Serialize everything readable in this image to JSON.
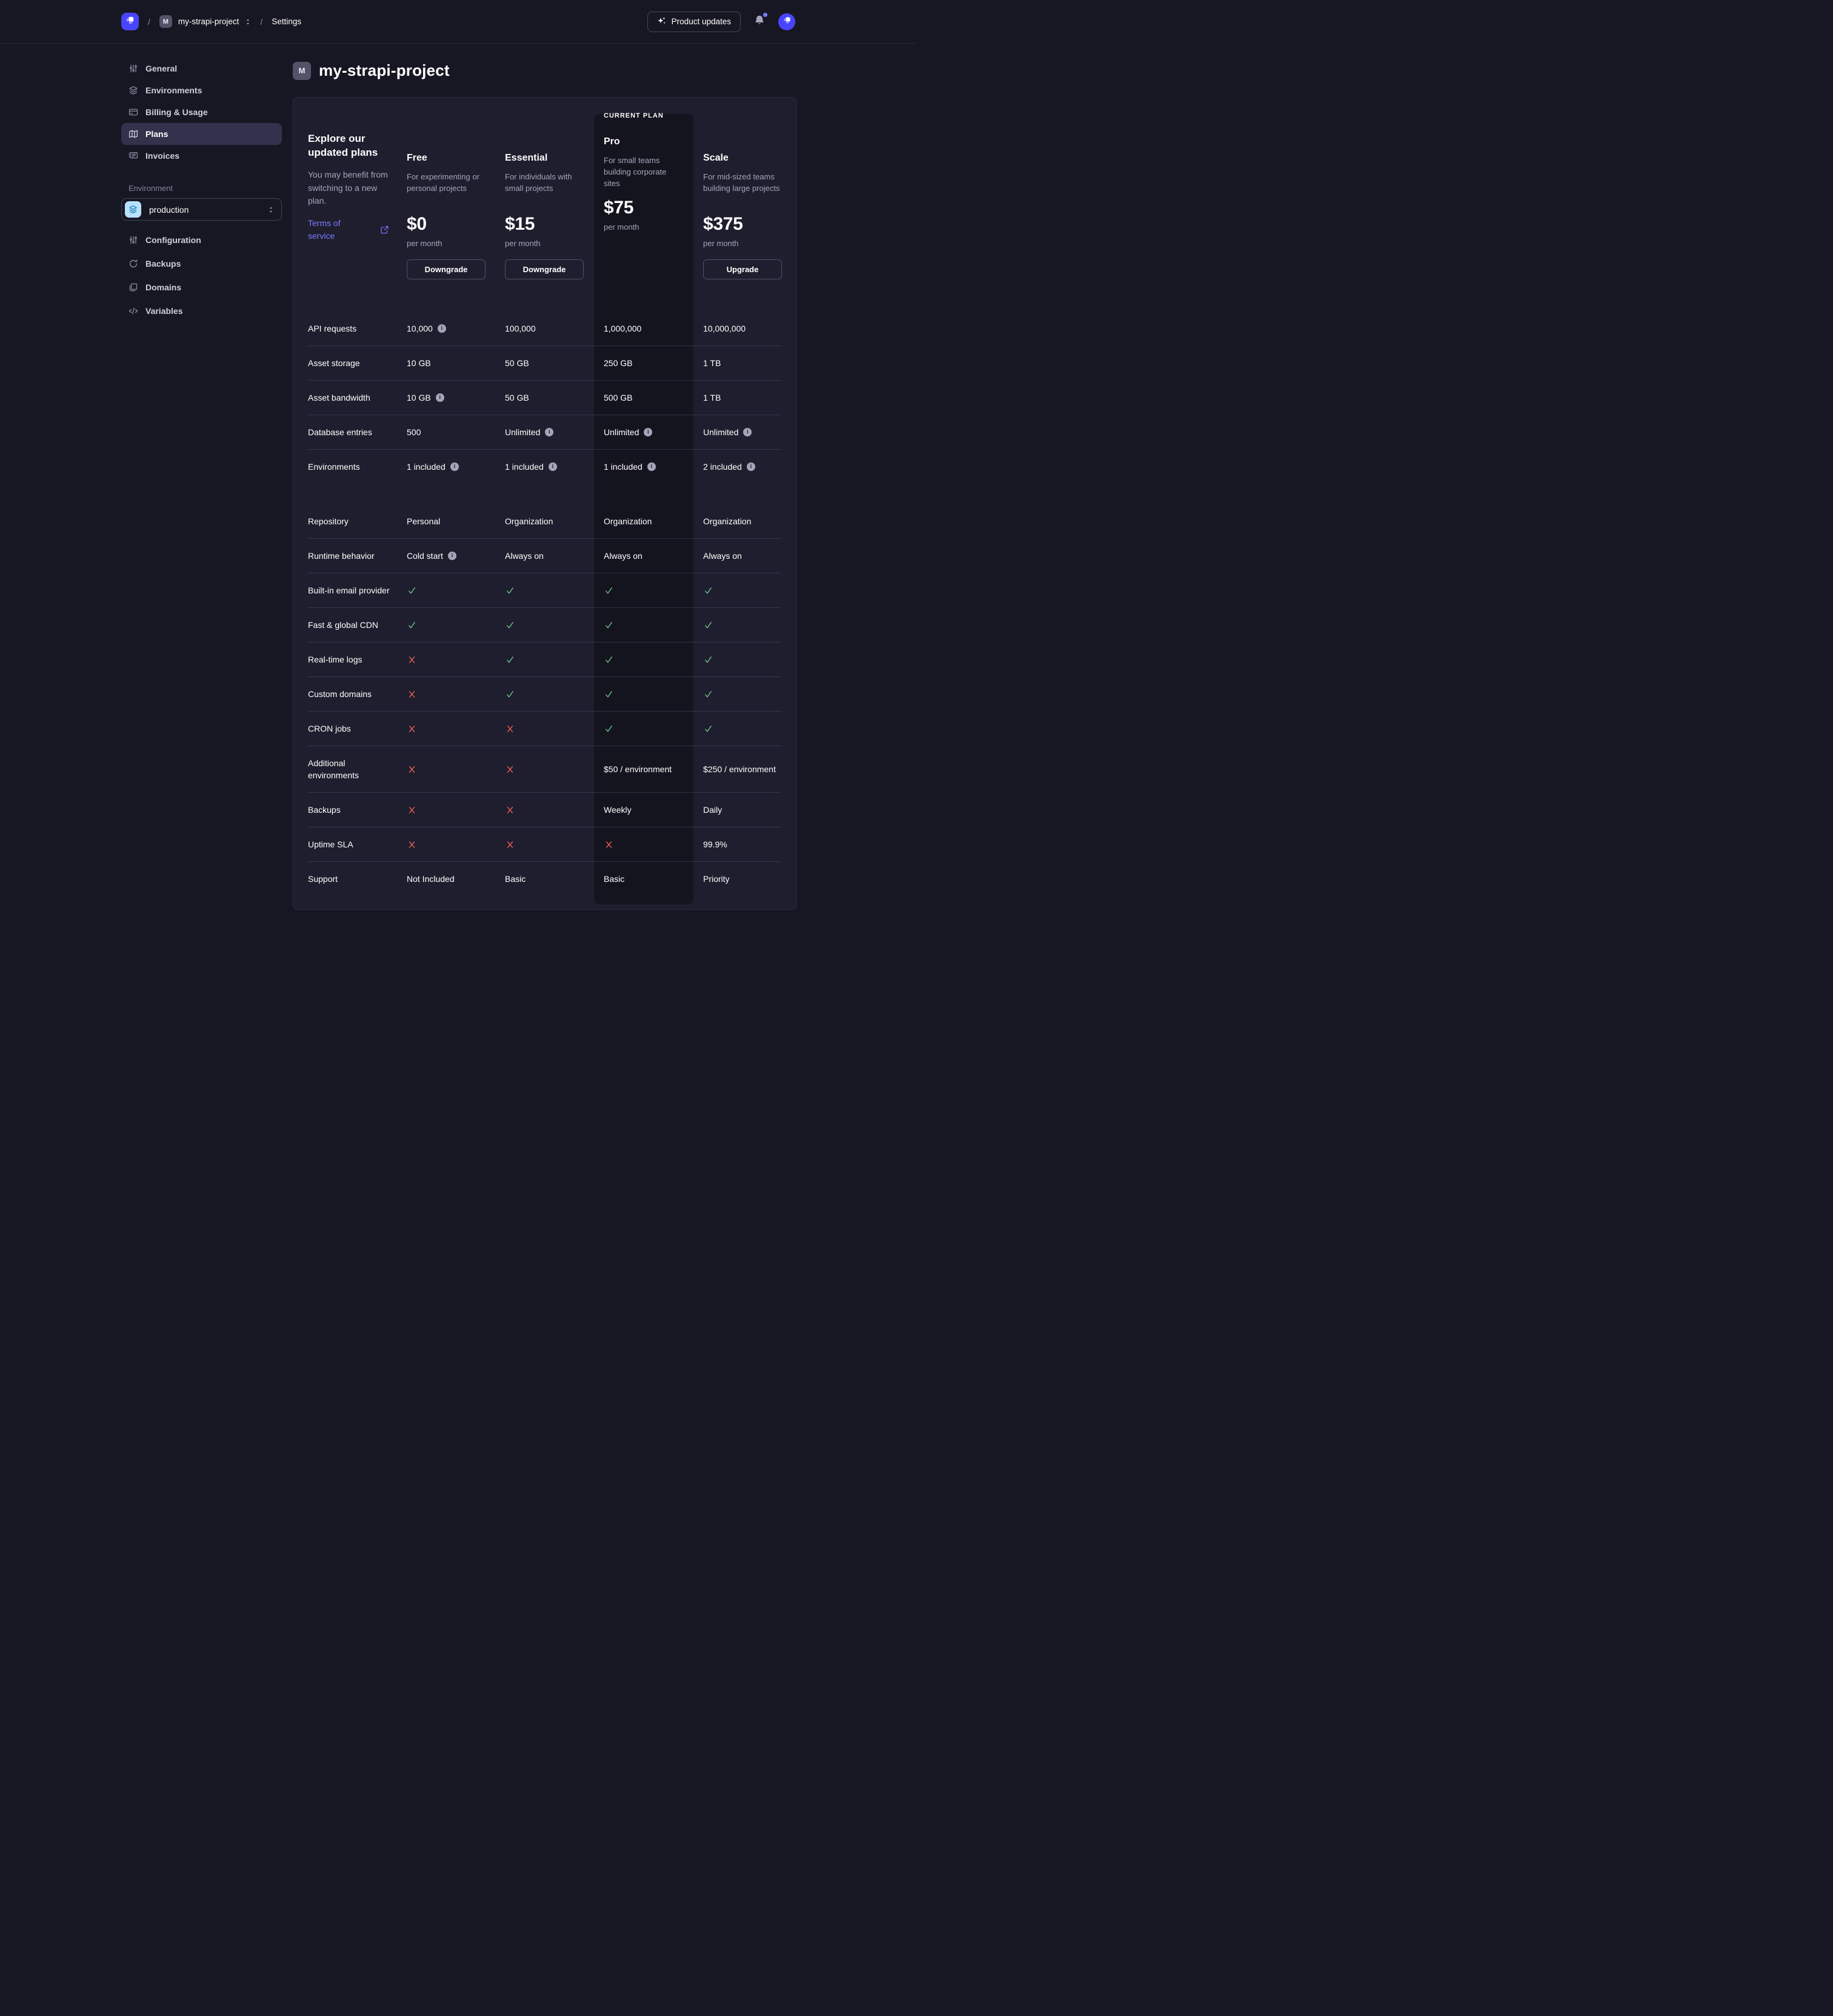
{
  "colors": {
    "brand": "#4945ff",
    "link": "#7b79ff",
    "success": "#69c387",
    "danger": "#ee5e52",
    "environment_icon_bg": "#b8e1ff",
    "current_plan_bg": "#14141f"
  },
  "topbar": {
    "project_initial": "M",
    "project_name": "my-strapi-project",
    "section": "Settings",
    "separator": "/",
    "product_updates_label": "Product updates"
  },
  "sidebar": {
    "items": [
      {
        "label": "General",
        "icon": "sliders-icon",
        "active": false
      },
      {
        "label": "Environments",
        "icon": "layers-icon",
        "active": false
      },
      {
        "label": "Billing & Usage",
        "icon": "credit-card-icon",
        "active": false
      },
      {
        "label": "Plans",
        "icon": "map-icon",
        "active": true
      },
      {
        "label": "Invoices",
        "icon": "invoice-icon",
        "active": false
      }
    ],
    "environment_label": "Environment",
    "environment_value": "production",
    "environment_items": [
      {
        "label": "Configuration",
        "icon": "sliders-icon"
      },
      {
        "label": "Backups",
        "icon": "refresh-icon"
      },
      {
        "label": "Domains",
        "icon": "folders-icon"
      },
      {
        "label": "Variables",
        "icon": "code-icon"
      }
    ]
  },
  "main": {
    "project_initial": "M",
    "title": "my-strapi-project",
    "intro": {
      "heading": "Explore our updated plans",
      "body": "You may benefit from switching to a new plan.",
      "link_label": "Terms of service"
    },
    "current_plan_label": "CURRENT PLAN",
    "plans": [
      {
        "name": "Free",
        "description": "For experimenting or personal projects",
        "price": "$0",
        "period": "per month",
        "action": "Downgrade",
        "current": false
      },
      {
        "name": "Essential",
        "description": "For individuals with small projects",
        "price": "$15",
        "period": "per month",
        "action": "Downgrade",
        "current": false
      },
      {
        "name": "Pro",
        "description": "For small teams building corporate sites",
        "price": "$75",
        "period": "per month",
        "action": null,
        "current": true
      },
      {
        "name": "Scale",
        "description": "For mid-sized teams building large projects",
        "price": "$375",
        "period": "per month",
        "action": "Upgrade",
        "current": false
      }
    ],
    "features": [
      {
        "label": "API requests",
        "cells": [
          {
            "type": "text",
            "value": "10,000",
            "info": true
          },
          {
            "type": "text",
            "value": "100,000"
          },
          {
            "type": "text",
            "value": "1,000,000"
          },
          {
            "type": "text",
            "value": "10,000,000"
          }
        ]
      },
      {
        "label": "Asset storage",
        "cells": [
          {
            "type": "text",
            "value": "10 GB"
          },
          {
            "type": "text",
            "value": "50 GB"
          },
          {
            "type": "text",
            "value": "250 GB"
          },
          {
            "type": "text",
            "value": "1 TB"
          }
        ]
      },
      {
        "label": "Asset bandwidth",
        "cells": [
          {
            "type": "text",
            "value": "10 GB",
            "info": true
          },
          {
            "type": "text",
            "value": "50 GB"
          },
          {
            "type": "text",
            "value": "500 GB"
          },
          {
            "type": "text",
            "value": "1 TB"
          }
        ]
      },
      {
        "label": "Database entries",
        "cells": [
          {
            "type": "text",
            "value": "500"
          },
          {
            "type": "text",
            "value": "Unlimited",
            "info": true
          },
          {
            "type": "text",
            "value": "Unlimited",
            "info": true
          },
          {
            "type": "text",
            "value": "Unlimited",
            "info": true
          }
        ]
      },
      {
        "label": "Environments",
        "variant": "tall",
        "cells": [
          {
            "type": "text",
            "value": "1 included",
            "info": true
          },
          {
            "type": "text",
            "value": "1 included",
            "info": true
          },
          {
            "type": "text",
            "value": "1 included",
            "info": true
          },
          {
            "type": "text",
            "value": "2 included",
            "info": true
          }
        ]
      },
      {
        "label": "Repository",
        "cells": [
          {
            "type": "text",
            "value": "Personal"
          },
          {
            "type": "text",
            "value": "Organization"
          },
          {
            "type": "text",
            "value": "Organization"
          },
          {
            "type": "text",
            "value": "Organization"
          }
        ]
      },
      {
        "label": "Runtime behavior",
        "cells": [
          {
            "type": "text",
            "value": "Cold start",
            "info": true
          },
          {
            "type": "text",
            "value": "Always on"
          },
          {
            "type": "text",
            "value": "Always on"
          },
          {
            "type": "text",
            "value": "Always on"
          }
        ]
      },
      {
        "label": "Built-in email provider",
        "cells": [
          {
            "type": "check"
          },
          {
            "type": "check"
          },
          {
            "type": "check"
          },
          {
            "type": "check"
          }
        ]
      },
      {
        "label": "Fast & global CDN",
        "cells": [
          {
            "type": "check"
          },
          {
            "type": "check"
          },
          {
            "type": "check"
          },
          {
            "type": "check"
          }
        ]
      },
      {
        "label": "Real-time logs",
        "cells": [
          {
            "type": "cross"
          },
          {
            "type": "check"
          },
          {
            "type": "check"
          },
          {
            "type": "check"
          }
        ]
      },
      {
        "label": "Custom domains",
        "cells": [
          {
            "type": "cross"
          },
          {
            "type": "check"
          },
          {
            "type": "check"
          },
          {
            "type": "check"
          }
        ]
      },
      {
        "label": "CRON jobs",
        "cells": [
          {
            "type": "cross"
          },
          {
            "type": "cross"
          },
          {
            "type": "check"
          },
          {
            "type": "check"
          }
        ]
      },
      {
        "label": "Additional environments",
        "cells": [
          {
            "type": "cross"
          },
          {
            "type": "cross"
          },
          {
            "type": "text",
            "value": "$50 / environment"
          },
          {
            "type": "text",
            "value": "$250 / environment"
          }
        ]
      },
      {
        "label": "Backups",
        "cells": [
          {
            "type": "cross"
          },
          {
            "type": "cross"
          },
          {
            "type": "text",
            "value": "Weekly"
          },
          {
            "type": "text",
            "value": "Daily"
          }
        ]
      },
      {
        "label": "Uptime SLA",
        "cells": [
          {
            "type": "cross"
          },
          {
            "type": "cross"
          },
          {
            "type": "cross"
          },
          {
            "type": "text",
            "value": "99.9%"
          }
        ]
      },
      {
        "label": "Support",
        "no_divider": true,
        "cells": [
          {
            "type": "text",
            "value": "Not Included"
          },
          {
            "type": "text",
            "value": "Basic"
          },
          {
            "type": "text",
            "value": "Basic"
          },
          {
            "type": "text",
            "value": "Priority"
          }
        ]
      }
    ]
  }
}
